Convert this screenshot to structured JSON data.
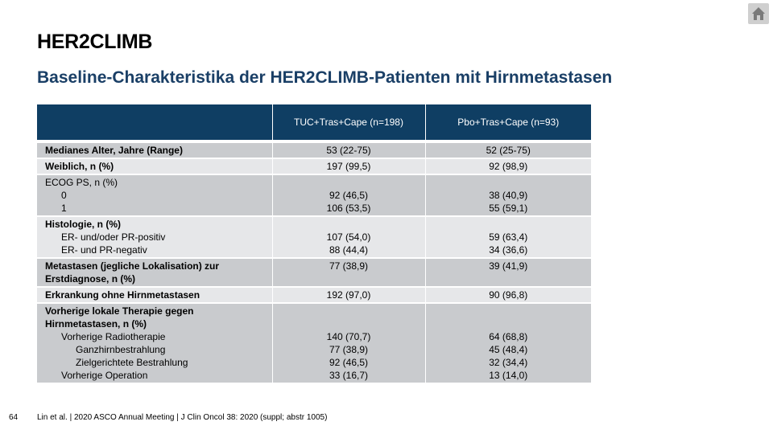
{
  "slide": {
    "title": "HER2CLIMB",
    "subtitle": "Baseline-Charakteristika der HER2CLIMB-Patienten mit Hirnmetastasen",
    "page_number": "64",
    "citation": "Lin et al. | 2020 ASCO Annual Meeting | J Clin Oncol 38: 2020 (suppl; abstr 1005)",
    "home_icon": "home-icon"
  },
  "table": {
    "headers": [
      "",
      "TUC+Tras+Cape (n=198)",
      "Pbo+Tras+Cape (n=93)"
    ],
    "rows": {
      "age": {
        "label": "Medianes Alter, Jahre (Range)",
        "tuc": "53 (22-75)",
        "pbo": "52 (25-75)"
      },
      "female": {
        "label": "Weiblich, n (%)",
        "tuc": "197 (99,5)",
        "pbo": "92 (98,9)"
      },
      "ecog": {
        "label": "ECOG PS, n (%)",
        "sub": [
          {
            "label": "0",
            "tuc": "92 (46,5)",
            "pbo": "38 (40,9)"
          },
          {
            "label": "1",
            "tuc": "106 (53,5)",
            "pbo": "55 (59,1)"
          }
        ]
      },
      "histology": {
        "label": "Histologie, n (%)",
        "sub": [
          {
            "label": "ER- und/oder PR-positiv",
            "tuc": "107 (54,0)",
            "pbo": "59 (63,4)"
          },
          {
            "label": "ER- und PR-negativ",
            "tuc": "88 (44,4)",
            "pbo": "34 (36,6)"
          }
        ]
      },
      "metastases": {
        "label_line1": "Metastasen (jegliche Lokalisation) zur",
        "label_line2": "Erstdiagnose, n (%)",
        "tuc": "77 (38,9)",
        "pbo": "39 (41,9)"
      },
      "no_brain": {
        "label": "Erkrankung ohne Hirnmetastasen",
        "tuc": "192 (97,0)",
        "pbo": "90 (96,8)"
      },
      "prior_local": {
        "label_line1": "Vorherige lokale Therapie gegen",
        "label_line2": "Hirnmetastasen, n (%)",
        "sub": [
          {
            "label": "Vorherige Radiotherapie",
            "tuc": "140 (70,7)",
            "pbo": "64 (68,8)"
          },
          {
            "label": "Ganzhirnbestrahlung",
            "tuc": "77 (38,9)",
            "pbo": "45 (48,4)"
          },
          {
            "label": "Zielgerichtete Bestrahlung",
            "tuc": "92 (46,5)",
            "pbo": "32 (34,4)"
          },
          {
            "label": "Vorherige Operation",
            "tuc": "33 (16,7)",
            "pbo": "13 (14,0)"
          }
        ]
      }
    }
  }
}
